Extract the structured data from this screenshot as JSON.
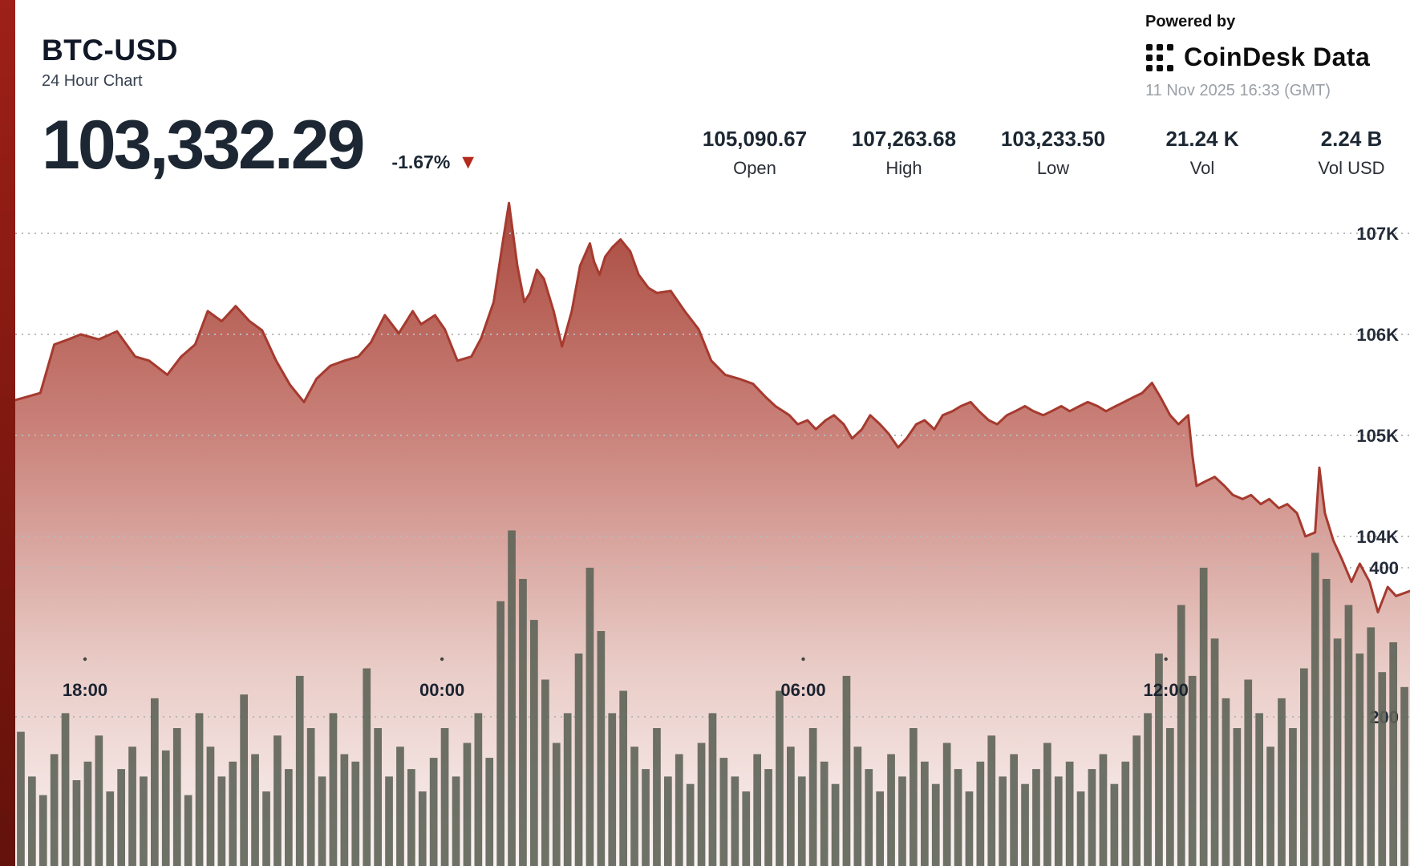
{
  "header": {
    "symbol": "BTC-USD",
    "subtitle": "24 Hour Chart",
    "price": "103,332.29",
    "change": "-1.67%",
    "change_direction": "down"
  },
  "icons": {
    "down_triangle": "▼"
  },
  "stats": {
    "items": [
      {
        "value": "105,090.67",
        "label": "Open"
      },
      {
        "value": "107,263.68",
        "label": "High"
      },
      {
        "value": "103,233.50",
        "label": "Low"
      },
      {
        "value": "21.24 K",
        "label": "Vol"
      },
      {
        "value": "2.24 B",
        "label": "Vol USD"
      }
    ]
  },
  "branding": {
    "powered_by": "Powered by",
    "logo_text": "CoinDesk Data",
    "timestamp": "11 Nov 2025 16:33 (GMT)"
  },
  "colors": {
    "line": "#a63a2f",
    "area_top": "#a8473c",
    "area_mid1": "#c98179",
    "area_mid2": "#e9cbc6",
    "area_bottom": "#faf3f2",
    "bar": "#5f6458",
    "grid": "#b9b9b9",
    "axis_text": "#242c3a",
    "tick_dot": "#444444",
    "triangle_red": "#b42a1c"
  },
  "chart_data": {
    "type": "area",
    "title": "BTC-USD 24 Hour Chart",
    "last": 103332.29,
    "open": 105090.67,
    "high": 107263.68,
    "low": 103233.5,
    "volume_btc": "21.24 K",
    "volume_usd": "2.24 B",
    "x_axis": {
      "labels": [
        "18:00",
        "00:00",
        "06:00",
        "12:00"
      ],
      "label_positions": [
        0.05,
        0.306,
        0.565,
        0.825
      ],
      "range_hours": 24
    },
    "y_axis_price": {
      "ticks": [
        "107K",
        "106K",
        "105K",
        "104K"
      ],
      "tick_values": [
        107000,
        106000,
        105000,
        104000
      ],
      "visible_range": [
        102800,
        107500
      ]
    },
    "y_axis_volume": {
      "ticks": [
        "400",
        "200"
      ],
      "tick_values": [
        400,
        200
      ],
      "max": 450
    },
    "price_series": [
      [
        0.0,
        105350
      ],
      [
        0.008,
        105380
      ],
      [
        0.018,
        105420
      ],
      [
        0.028,
        105900
      ],
      [
        0.038,
        105950
      ],
      [
        0.047,
        106000
      ],
      [
        0.06,
        105950
      ],
      [
        0.073,
        106030
      ],
      [
        0.086,
        105780
      ],
      [
        0.096,
        105740
      ],
      [
        0.109,
        105600
      ],
      [
        0.119,
        105780
      ],
      [
        0.129,
        105900
      ],
      [
        0.138,
        106230
      ],
      [
        0.148,
        106130
      ],
      [
        0.158,
        106280
      ],
      [
        0.168,
        106130
      ],
      [
        0.177,
        106040
      ],
      [
        0.187,
        105740
      ],
      [
        0.197,
        105500
      ],
      [
        0.207,
        105330
      ],
      [
        0.216,
        105560
      ],
      [
        0.226,
        105690
      ],
      [
        0.236,
        105740
      ],
      [
        0.246,
        105780
      ],
      [
        0.255,
        105920
      ],
      [
        0.265,
        106190
      ],
      [
        0.275,
        106010
      ],
      [
        0.285,
        106230
      ],
      [
        0.291,
        106100
      ],
      [
        0.301,
        106190
      ],
      [
        0.308,
        106050
      ],
      [
        0.317,
        105740
      ],
      [
        0.327,
        105780
      ],
      [
        0.334,
        105960
      ],
      [
        0.343,
        106320
      ],
      [
        0.35,
        106950
      ],
      [
        0.354,
        107300
      ],
      [
        0.36,
        106680
      ],
      [
        0.365,
        106320
      ],
      [
        0.369,
        106410
      ],
      [
        0.374,
        106640
      ],
      [
        0.379,
        106550
      ],
      [
        0.386,
        106230
      ],
      [
        0.392,
        105880
      ],
      [
        0.399,
        106230
      ],
      [
        0.405,
        106680
      ],
      [
        0.412,
        106900
      ],
      [
        0.415,
        106720
      ],
      [
        0.419,
        106590
      ],
      [
        0.423,
        106770
      ],
      [
        0.428,
        106860
      ],
      [
        0.434,
        106940
      ],
      [
        0.441,
        106820
      ],
      [
        0.447,
        106590
      ],
      [
        0.454,
        106460
      ],
      [
        0.46,
        106410
      ],
      [
        0.47,
        106430
      ],
      [
        0.48,
        106230
      ],
      [
        0.49,
        106050
      ],
      [
        0.499,
        105740
      ],
      [
        0.509,
        105600
      ],
      [
        0.519,
        105560
      ],
      [
        0.529,
        105510
      ],
      [
        0.538,
        105380
      ],
      [
        0.545,
        105290
      ],
      [
        0.555,
        105200
      ],
      [
        0.561,
        105110
      ],
      [
        0.568,
        105150
      ],
      [
        0.574,
        105060
      ],
      [
        0.581,
        105150
      ],
      [
        0.587,
        105200
      ],
      [
        0.594,
        105110
      ],
      [
        0.6,
        104970
      ],
      [
        0.607,
        105060
      ],
      [
        0.613,
        105200
      ],
      [
        0.62,
        105110
      ],
      [
        0.626,
        105020
      ],
      [
        0.633,
        104880
      ],
      [
        0.639,
        104970
      ],
      [
        0.646,
        105110
      ],
      [
        0.652,
        105150
      ],
      [
        0.659,
        105060
      ],
      [
        0.665,
        105200
      ],
      [
        0.672,
        105240
      ],
      [
        0.678,
        105290
      ],
      [
        0.685,
        105330
      ],
      [
        0.691,
        105240
      ],
      [
        0.698,
        105150
      ],
      [
        0.704,
        105110
      ],
      [
        0.711,
        105200
      ],
      [
        0.717,
        105240
      ],
      [
        0.724,
        105290
      ],
      [
        0.73,
        105240
      ],
      [
        0.737,
        105200
      ],
      [
        0.743,
        105240
      ],
      [
        0.75,
        105290
      ],
      [
        0.756,
        105240
      ],
      [
        0.763,
        105290
      ],
      [
        0.769,
        105330
      ],
      [
        0.776,
        105290
      ],
      [
        0.782,
        105240
      ],
      [
        0.789,
        105290
      ],
      [
        0.795,
        105330
      ],
      [
        0.802,
        105380
      ],
      [
        0.808,
        105420
      ],
      [
        0.815,
        105520
      ],
      [
        0.821,
        105380
      ],
      [
        0.828,
        105200
      ],
      [
        0.834,
        105110
      ],
      [
        0.841,
        105200
      ],
      [
        0.844,
        104800
      ],
      [
        0.847,
        104500
      ],
      [
        0.854,
        104550
      ],
      [
        0.86,
        104590
      ],
      [
        0.867,
        104500
      ],
      [
        0.873,
        104410
      ],
      [
        0.88,
        104370
      ],
      [
        0.886,
        104410
      ],
      [
        0.893,
        104320
      ],
      [
        0.899,
        104370
      ],
      [
        0.906,
        104280
      ],
      [
        0.912,
        104320
      ],
      [
        0.919,
        104230
      ],
      [
        0.925,
        104000
      ],
      [
        0.932,
        104040
      ],
      [
        0.935,
        104680
      ],
      [
        0.939,
        104230
      ],
      [
        0.945,
        103960
      ],
      [
        0.951,
        103780
      ],
      [
        0.958,
        103550
      ],
      [
        0.964,
        103730
      ],
      [
        0.971,
        103550
      ],
      [
        0.977,
        103250
      ],
      [
        0.984,
        103500
      ],
      [
        0.99,
        103410
      ],
      [
        1.0,
        103460
      ]
    ],
    "volume_series": [
      180,
      120,
      95,
      150,
      205,
      115,
      140,
      175,
      100,
      130,
      160,
      120,
      225,
      155,
      185,
      95,
      205,
      160,
      120,
      140,
      230,
      150,
      100,
      175,
      130,
      255,
      185,
      120,
      205,
      150,
      140,
      265,
      185,
      120,
      160,
      130,
      100,
      145,
      185,
      120,
      165,
      205,
      145,
      355,
      450,
      385,
      330,
      250,
      165,
      205,
      285,
      400,
      315,
      205,
      235,
      160,
      130,
      185,
      120,
      150,
      110,
      165,
      205,
      145,
      120,
      100,
      150,
      130,
      235,
      160,
      120,
      185,
      140,
      110,
      255,
      160,
      130,
      100,
      150,
      120,
      185,
      140,
      110,
      165,
      130,
      100,
      140,
      175,
      120,
      150,
      110,
      130,
      165,
      120,
      140,
      100,
      130,
      150,
      110,
      140,
      175,
      205,
      285,
      185,
      350,
      255,
      400,
      305,
      225,
      185,
      250,
      205,
      160,
      225,
      185,
      265,
      420,
      385,
      305,
      350,
      285,
      320,
      260,
      300,
      240
    ]
  }
}
